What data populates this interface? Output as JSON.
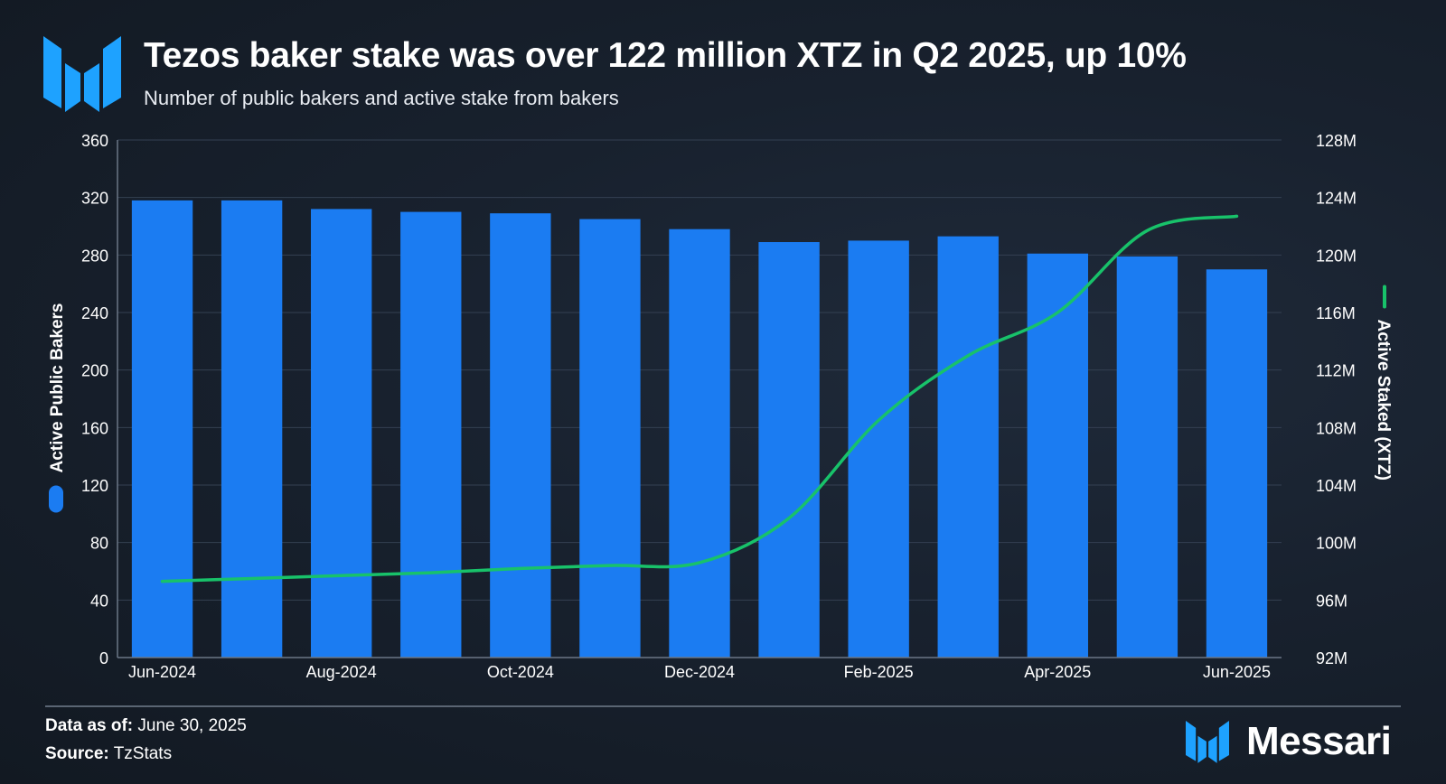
{
  "header": {
    "title": "Tezos baker stake was over 122 million XTZ in Q2 2025, up 10%",
    "subtitle": "Number of public bakers and active stake from bakers"
  },
  "chart_data": {
    "type": "bar+line",
    "title": "Tezos baker stake was over 122 million XTZ in Q2 2025, up 10%",
    "subtitle": "Number of public bakers and active stake from bakers",
    "categories": [
      "Jun-2024",
      "Jul-2024",
      "Aug-2024",
      "Sep-2024",
      "Oct-2024",
      "Nov-2024",
      "Dec-2024",
      "Jan-2025",
      "Feb-2025",
      "Mar-2025",
      "Apr-2025",
      "May-2025",
      "Jun-2025"
    ],
    "x_tick_labels": [
      "Jun-2024",
      "",
      "Aug-2024",
      "",
      "Oct-2024",
      "",
      "Dec-2024",
      "",
      "Feb-2025",
      "",
      "Apr-2025",
      "",
      "Jun-2025"
    ],
    "series": [
      {
        "name": "Active Public Bakers",
        "type": "bar",
        "axis": "left",
        "color": "#1b7cf2",
        "values": [
          318,
          318,
          312,
          310,
          309,
          305,
          298,
          289,
          290,
          293,
          281,
          279,
          270
        ]
      },
      {
        "name": "Active Staked (XTZ)",
        "type": "line",
        "axis": "right",
        "color": "#18c26a",
        "values": [
          97.3,
          97.5,
          97.7,
          97.9,
          98.2,
          98.4,
          98.6,
          101.7,
          108.5,
          113.0,
          116.0,
          121.7,
          122.7
        ]
      }
    ],
    "y_left": {
      "label": "Active Public Bakers",
      "range": [
        0,
        360
      ],
      "ticks": [
        "0",
        "40",
        "80",
        "120",
        "160",
        "200",
        "240",
        "280",
        "320",
        "360"
      ]
    },
    "y_right": {
      "label": "Active Staked (XTZ)",
      "range": [
        92,
        128
      ],
      "ticks": [
        "92M",
        "96M",
        "100M",
        "104M",
        "108M",
        "112M",
        "116M",
        "120M",
        "124M",
        "128M"
      ]
    },
    "grid": true
  },
  "footer": {
    "data_as_of_label": "Data as of:",
    "data_as_of_value": "June 30, 2025",
    "source_label": "Source:",
    "source_value": "TzStats",
    "brand_name": "Messari"
  },
  "colors": {
    "accent_blue": "#1b7cf2",
    "line_green": "#18c26a",
    "logo_blue": "#1ea2ff"
  }
}
